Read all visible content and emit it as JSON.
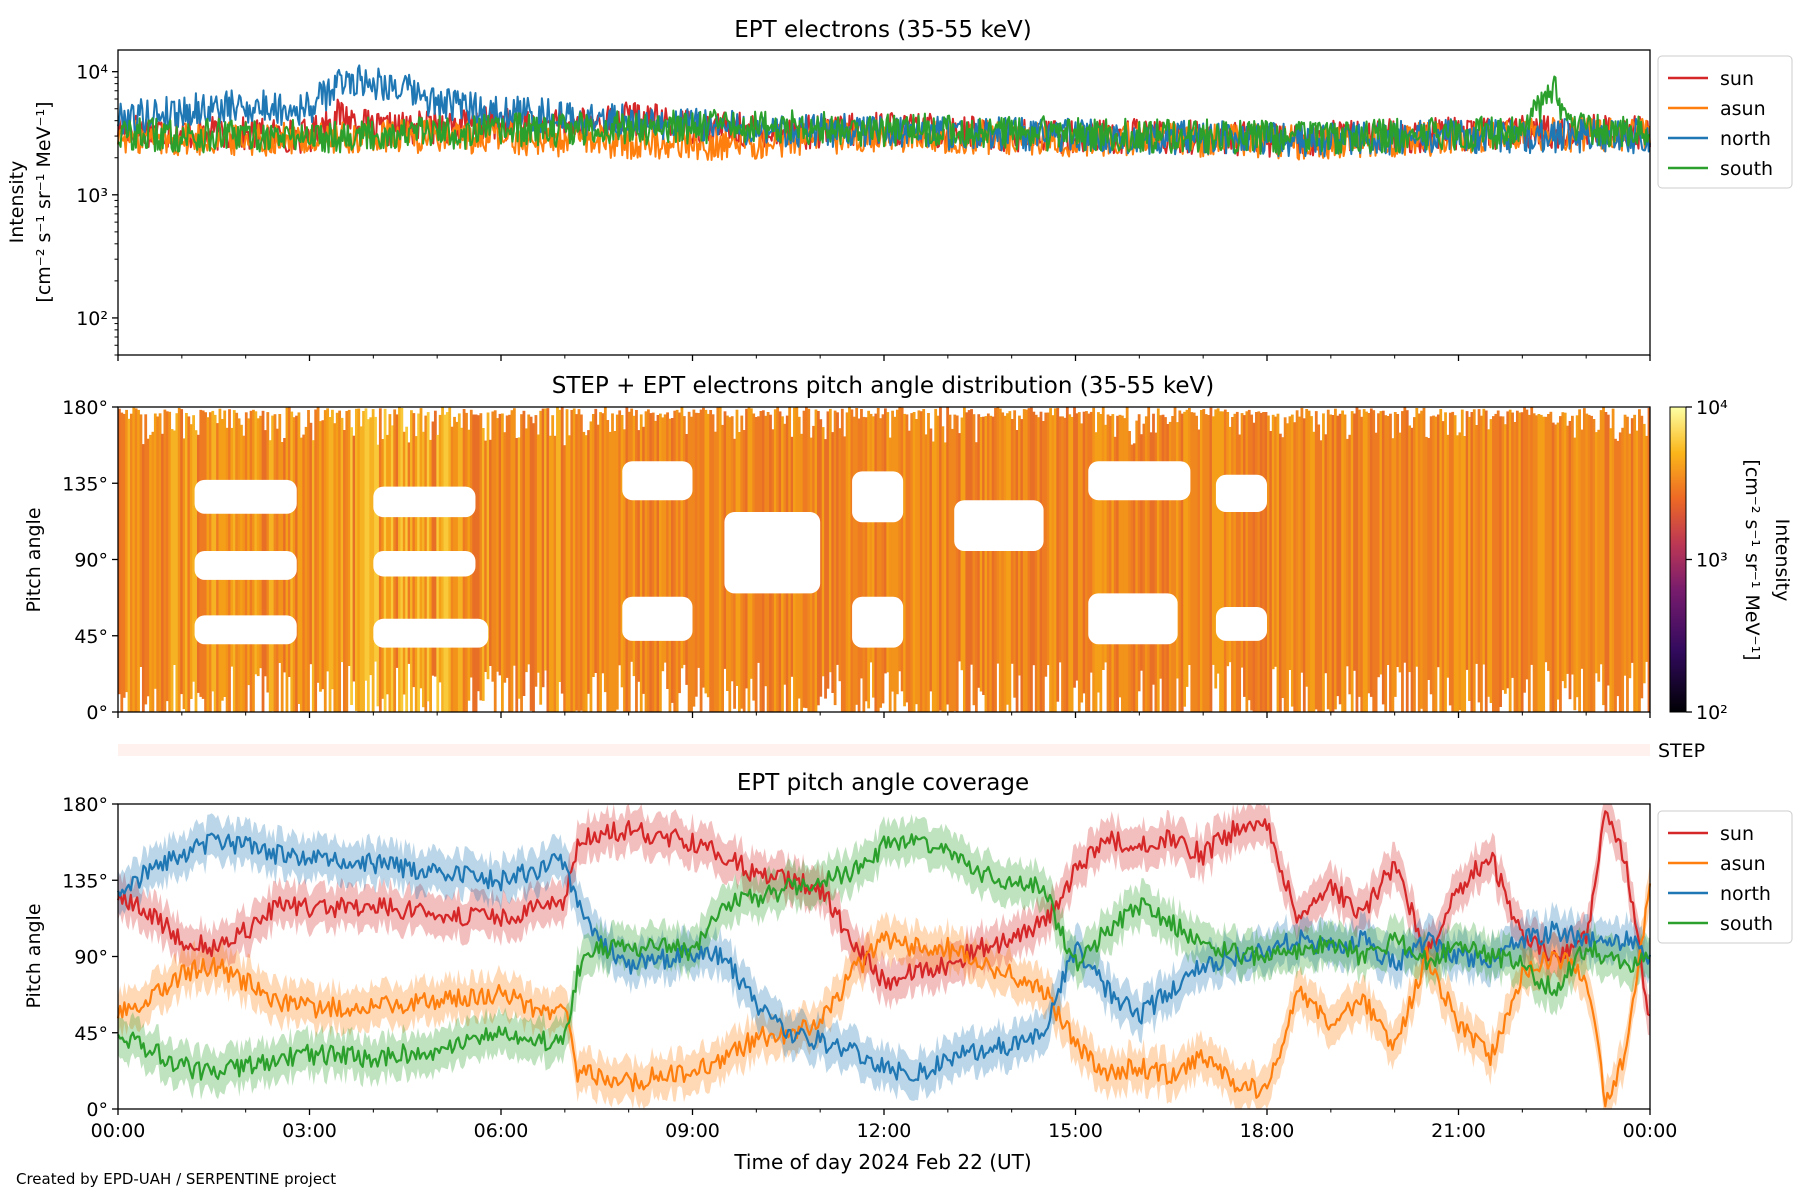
{
  "figure": {
    "footer": "Created by EPD-UAH / SERPENTINE project"
  },
  "colors": {
    "sun": "#d62728",
    "asun": "#ff7f0e",
    "north": "#1f77b4",
    "south": "#2ca02c",
    "pad_fill": "#f08a1c",
    "pad_step": "#fff2ee"
  },
  "chart_data": [
    {
      "type": "line",
      "title": "EPT electrons (35-55 keV)",
      "ylabel": "Intensity",
      "yunit": "[cm⁻² s⁻¹ sr⁻¹ MeV⁻¹]",
      "yscale": "log",
      "ylim": [
        50,
        15000
      ],
      "yticks": [
        "10⁴",
        "10³",
        "10²"
      ],
      "xlim": [
        0,
        24
      ],
      "legend_position": "outside-right",
      "series": [
        {
          "name": "sun",
          "color": "#d62728",
          "x": [
            0,
            1,
            2,
            3,
            3.5,
            4,
            5,
            6,
            7,
            8,
            9,
            10,
            11,
            12,
            13,
            14,
            15,
            16,
            17,
            18,
            19,
            20,
            21,
            22,
            22.6,
            23,
            24
          ],
          "values": [
            3500,
            3200,
            3100,
            3000,
            4500,
            3300,
            3600,
            3800,
            3500,
            4200,
            3600,
            3300,
            3200,
            3500,
            3300,
            3000,
            3000,
            3000,
            2900,
            2800,
            2900,
            3000,
            3100,
            3200,
            3200,
            3300,
            3200
          ]
        },
        {
          "name": "asun",
          "color": "#ff7f0e",
          "x": [
            0,
            1,
            2,
            3,
            4,
            5,
            6,
            7,
            8,
            9,
            10,
            11,
            12,
            13,
            14,
            15,
            16,
            17,
            18,
            19,
            20,
            21,
            22,
            23,
            24
          ],
          "values": [
            3000,
            2800,
            2900,
            2800,
            2900,
            3000,
            2900,
            2800,
            2700,
            2600,
            2700,
            2900,
            3100,
            3000,
            2900,
            2800,
            2800,
            2800,
            2700,
            2600,
            2800,
            2900,
            3000,
            3100,
            3100
          ]
        },
        {
          "name": "north",
          "color": "#1f77b4",
          "x": [
            0,
            1,
            2,
            3,
            3.6,
            4.2,
            5,
            6,
            7,
            8,
            9,
            10,
            11,
            12,
            13,
            14,
            15,
            16,
            17,
            18,
            19,
            20,
            21,
            22,
            23,
            24
          ],
          "values": [
            4200,
            4800,
            5200,
            5000,
            8800,
            8000,
            5500,
            4800,
            4200,
            3900,
            3700,
            3400,
            3300,
            3300,
            3200,
            3100,
            3000,
            2900,
            2900,
            2800,
            2800,
            2900,
            3000,
            3000,
            3000,
            3000
          ]
        },
        {
          "name": "south",
          "color": "#2ca02c",
          "x": [
            0,
            1,
            2,
            3,
            4,
            5,
            6,
            7,
            8,
            9,
            10,
            11,
            12,
            13,
            14,
            15,
            16,
            17,
            18,
            19,
            20,
            21,
            22,
            22.5,
            22.7,
            23,
            24
          ],
          "values": [
            3100,
            3000,
            3000,
            3000,
            3100,
            3200,
            3300,
            3400,
            3500,
            3600,
            3600,
            3500,
            3400,
            3300,
            3200,
            3100,
            3000,
            3000,
            2900,
            2900,
            3000,
            3100,
            3200,
            7000,
            3300,
            3400,
            3300
          ]
        }
      ]
    },
    {
      "type": "heatmap",
      "title": "STEP + EPT electrons pitch angle distribution (35-55 keV)",
      "ylabel": "Pitch angle",
      "yticks": [
        "180°",
        "135°",
        "90°",
        "45°",
        "0°"
      ],
      "ylim": [
        0,
        180
      ],
      "xlim": [
        0,
        24
      ],
      "colorbar": {
        "label": "Intensity",
        "unit": "[cm⁻² s⁻¹ sr⁻¹ MeV⁻¹]",
        "ticks": [
          "10⁴",
          "10³",
          "10²"
        ],
        "range": [
          100,
          10000
        ]
      },
      "step_label": "STEP",
      "gaps": [
        {
          "x": [
            1.2,
            2.8
          ],
          "y": [
            117,
            137
          ]
        },
        {
          "x": [
            1.2,
            2.8
          ],
          "y": [
            78,
            95
          ]
        },
        {
          "x": [
            1.2,
            2.8
          ],
          "y": [
            40,
            57
          ]
        },
        {
          "x": [
            4.0,
            5.6
          ],
          "y": [
            115,
            133
          ]
        },
        {
          "x": [
            4.0,
            5.6
          ],
          "y": [
            80,
            95
          ]
        },
        {
          "x": [
            4.0,
            5.8
          ],
          "y": [
            38,
            55
          ]
        },
        {
          "x": [
            7.9,
            9.0
          ],
          "y": [
            125,
            148
          ]
        },
        {
          "x": [
            7.9,
            9.0
          ],
          "y": [
            42,
            68
          ]
        },
        {
          "x": [
            9.5,
            11.0
          ],
          "y": [
            70,
            118
          ]
        },
        {
          "x": [
            11.5,
            12.3
          ],
          "y": [
            112,
            142
          ]
        },
        {
          "x": [
            11.5,
            12.3
          ],
          "y": [
            38,
            68
          ]
        },
        {
          "x": [
            13.1,
            14.5
          ],
          "y": [
            95,
            125
          ]
        },
        {
          "x": [
            15.2,
            16.6
          ],
          "y": [
            40,
            70
          ]
        },
        {
          "x": [
            15.2,
            16.8
          ],
          "y": [
            125,
            148
          ]
        },
        {
          "x": [
            17.2,
            18.0
          ],
          "y": [
            118,
            140
          ]
        },
        {
          "x": [
            17.2,
            18.0
          ],
          "y": [
            42,
            62
          ]
        }
      ]
    },
    {
      "type": "line",
      "title": "EPT pitch angle coverage",
      "xlabel": "Time of day 2024 Feb 22 (UT)",
      "ylabel": "Pitch angle",
      "yticks": [
        "180°",
        "135°",
        "90°",
        "45°",
        "0°"
      ],
      "ylim": [
        0,
        180
      ],
      "xlim": [
        0,
        24
      ],
      "xticks": [
        "00:00",
        "03:00",
        "06:00",
        "09:00",
        "12:00",
        "15:00",
        "18:00",
        "21:00",
        "00:00"
      ],
      "legend_position": "outside-right",
      "series": [
        {
          "name": "sun",
          "color": "#d62728",
          "x": [
            0,
            0.5,
            1,
            1.5,
            2,
            2.5,
            3,
            4,
            5,
            6,
            6.5,
            7,
            7.2,
            7.5,
            8,
            8.5,
            9,
            9.5,
            10,
            10.5,
            11,
            11.5,
            12,
            12.5,
            13,
            13.5,
            14,
            14.5,
            15,
            15.5,
            16,
            16.5,
            17,
            17.5,
            18,
            18.5,
            19,
            19.5,
            20,
            20.5,
            21,
            21.5,
            22,
            22.5,
            23,
            23.3,
            23.6,
            24
          ],
          "values": [
            125,
            115,
            100,
            95,
            105,
            120,
            118,
            120,
            115,
            112,
            118,
            120,
            158,
            162,
            165,
            160,
            158,
            150,
            138,
            135,
            130,
            100,
            75,
            82,
            85,
            95,
            100,
            110,
            140,
            160,
            155,
            160,
            150,
            165,
            170,
            110,
            130,
            115,
            145,
            90,
            130,
            150,
            100,
            90,
            100,
            175,
            150,
            50
          ]
        },
        {
          "name": "asun",
          "color": "#ff7f0e",
          "x": [
            0,
            0.5,
            1,
            1.5,
            2,
            2.5,
            3,
            4,
            5,
            6,
            6.5,
            7,
            7.2,
            7.5,
            8,
            8.5,
            9,
            9.5,
            10,
            10.5,
            11,
            11.5,
            12,
            12.5,
            13,
            13.5,
            14,
            14.5,
            15,
            15.5,
            16,
            16.5,
            17,
            17.5,
            18,
            18.5,
            19,
            19.5,
            20,
            20.5,
            21,
            21.5,
            22,
            22.5,
            23,
            23.3,
            23.6,
            24
          ],
          "values": [
            55,
            65,
            80,
            85,
            75,
            62,
            60,
            60,
            65,
            68,
            60,
            58,
            22,
            20,
            15,
            20,
            22,
            30,
            42,
            45,
            50,
            80,
            100,
            95,
            95,
            85,
            80,
            70,
            40,
            20,
            25,
            20,
            30,
            15,
            10,
            70,
            50,
            65,
            35,
            90,
            50,
            30,
            80,
            90,
            80,
            5,
            30,
            130
          ]
        },
        {
          "name": "north",
          "color": "#1f77b4",
          "x": [
            0,
            0.5,
            1,
            1.5,
            2,
            2.5,
            3,
            4,
            5,
            6,
            6.5,
            7,
            7.2,
            7.5,
            8,
            8.5,
            9,
            9.5,
            10,
            10.5,
            11,
            11.5,
            12,
            12.5,
            13,
            13.5,
            14,
            14.5,
            15,
            15.5,
            16,
            16.5,
            17,
            17.5,
            18,
            18.5,
            19,
            19.5,
            20,
            20.5,
            21,
            21.5,
            22,
            22.5,
            23,
            23.3,
            23.6,
            24
          ],
          "values": [
            130,
            140,
            150,
            158,
            155,
            150,
            148,
            145,
            140,
            135,
            140,
            148,
            120,
            100,
            85,
            88,
            92,
            90,
            60,
            45,
            40,
            35,
            25,
            20,
            30,
            35,
            38,
            45,
            95,
            70,
            55,
            70,
            85,
            90,
            95,
            100,
            95,
            100,
            85,
            100,
            90,
            88,
            100,
            105,
            100,
            95,
            100,
            90
          ]
        },
        {
          "name": "south",
          "color": "#2ca02c",
          "x": [
            0,
            0.5,
            1,
            1.5,
            2,
            2.5,
            3,
            4,
            5,
            6,
            6.5,
            7,
            7.2,
            7.5,
            8,
            8.5,
            9,
            9.5,
            10,
            10.5,
            11,
            11.5,
            12,
            12.5,
            13,
            13.5,
            14,
            14.5,
            15,
            15.5,
            16,
            16.5,
            17,
            17.5,
            18,
            18.5,
            19,
            19.5,
            20,
            20.5,
            21,
            21.5,
            22,
            22.5,
            23,
            23.3,
            23.6,
            24
          ],
          "values": [
            45,
            35,
            25,
            22,
            25,
            30,
            32,
            30,
            35,
            45,
            40,
            40,
            80,
            95,
            95,
            98,
            92,
            120,
            125,
            130,
            135,
            140,
            155,
            160,
            150,
            140,
            135,
            130,
            85,
            105,
            120,
            110,
            95,
            92,
            88,
            95,
            98,
            90,
            100,
            88,
            95,
            90,
            85,
            70,
            95,
            90,
            85,
            90
          ]
        }
      ]
    }
  ]
}
